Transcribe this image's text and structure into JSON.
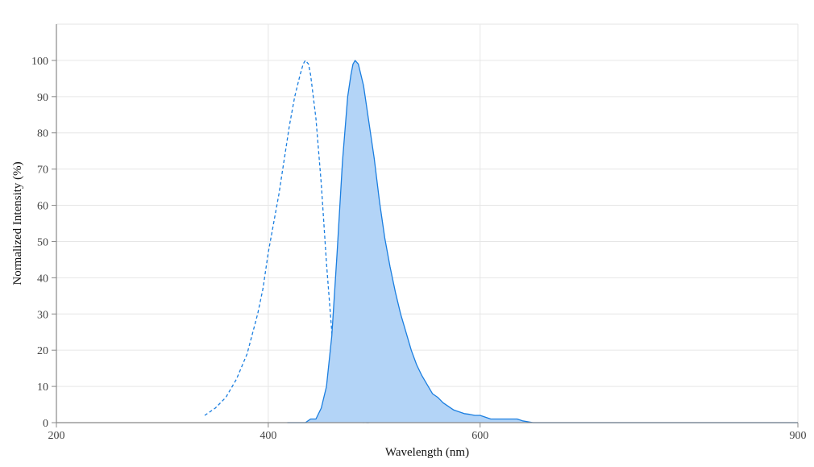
{
  "chart_data": {
    "type": "area",
    "title": "",
    "xlabel": "Wavelength (nm)",
    "ylabel": "Normalized Intensity (%)",
    "xlim": [
      200,
      900
    ],
    "ylim": [
      0,
      110
    ],
    "x_ticks": [
      200,
      400,
      600,
      900
    ],
    "y_ticks": [
      0,
      10,
      20,
      30,
      40,
      50,
      60,
      70,
      80,
      90,
      100
    ],
    "grid": true,
    "legend": "none",
    "colors": {
      "line": "#1a7ee0",
      "fill": "#b3d4f7",
      "grid": "#e6e6e6",
      "axis": "#888888"
    },
    "series": [
      {
        "style": "dashed",
        "filled": false,
        "x": [
          340,
          350,
          360,
          370,
          380,
          390,
          395,
          400,
          410,
          420,
          425,
          430,
          433,
          435,
          438,
          440,
          445,
          450,
          455,
          460,
          465,
          470,
          475,
          480,
          485,
          490,
          495
        ],
        "y": [
          2,
          4,
          7,
          12,
          19,
          30,
          37,
          47,
          63,
          82,
          90,
          96,
          99,
          100,
          99,
          96,
          84,
          66,
          44,
          25,
          12,
          5,
          2,
          0.5,
          0.2,
          0,
          0
        ]
      },
      {
        "style": "solid",
        "filled": true,
        "x": [
          418,
          420,
          425,
          430,
          435,
          440,
          445,
          450,
          455,
          460,
          465,
          470,
          475,
          478,
          480,
          482,
          485,
          490,
          495,
          500,
          505,
          510,
          515,
          520,
          525,
          530,
          535,
          540,
          545,
          550,
          555,
          560,
          565,
          570,
          575,
          580,
          585,
          590,
          595,
          600,
          605,
          610,
          620,
          630,
          635,
          640,
          650,
          700,
          800,
          900
        ],
        "y": [
          0,
          0,
          0,
          0,
          0,
          1,
          1,
          4,
          10,
          24,
          47,
          72,
          90,
          96,
          99,
          100,
          99,
          93,
          83,
          73,
          61,
          51,
          43,
          36,
          30,
          25,
          20,
          16,
          13,
          10.5,
          8,
          7,
          5.5,
          4.5,
          3.5,
          3,
          2.5,
          2.3,
          2,
          2,
          1.5,
          1,
          1,
          1,
          1,
          0.5,
          0,
          0,
          0,
          0
        ]
      }
    ]
  }
}
